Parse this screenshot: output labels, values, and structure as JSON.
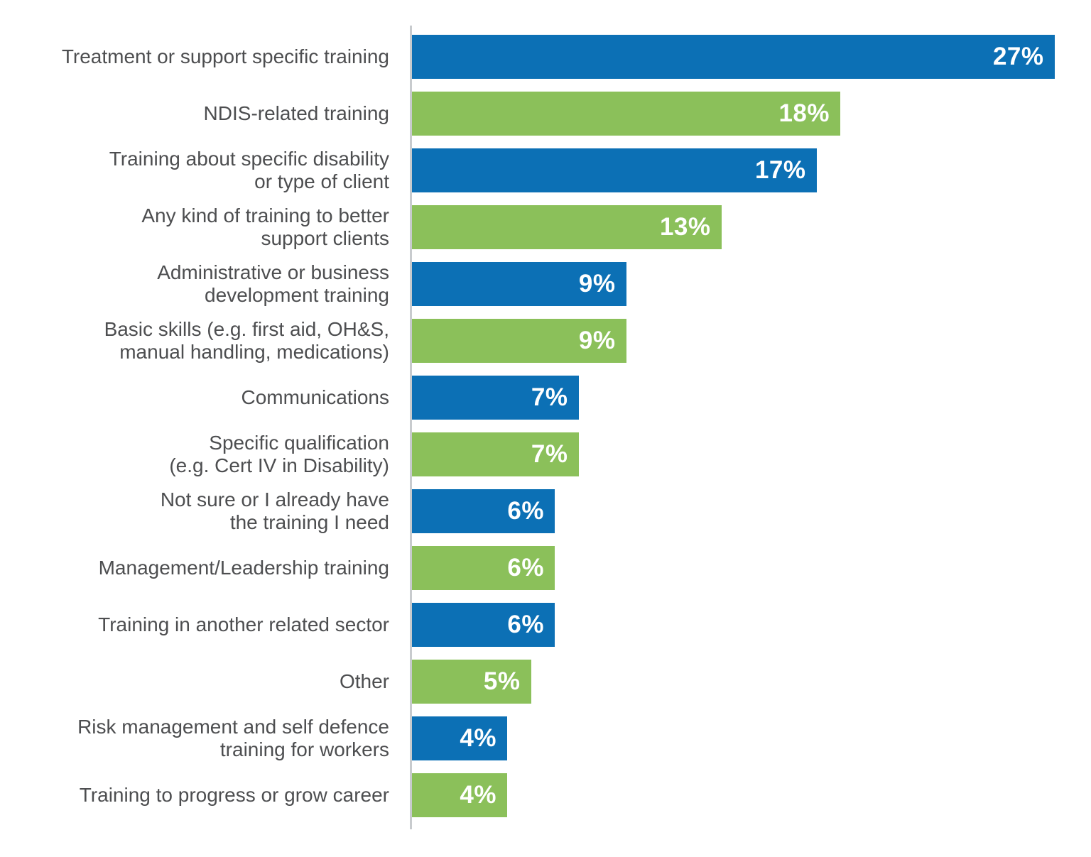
{
  "chart_data": {
    "type": "bar",
    "orientation": "horizontal",
    "title": "",
    "xlabel": "",
    "ylabel": "",
    "unit": "%",
    "xlim": [
      0,
      27
    ],
    "grid": false,
    "legend": false,
    "colors": {
      "blue": "#0c70b5",
      "green": "#8bc05a",
      "axis_line": "#c8cbce",
      "category_text": "#4d4e50",
      "value_text": "#ffffff"
    },
    "categories": [
      "Treatment or support specific training",
      "NDIS-related training",
      "Training about specific disability or type of client",
      "Any kind of training to better support clients",
      "Administrative or business development training",
      "Basic skills (e.g. first aid, OH&S, manual handling, medications)",
      "Communications",
      "Specific qualification (e.g. Cert IV in Disability)",
      "Not sure or I already have the training I need",
      "Management/Leadership training",
      "Training in another related sector",
      "Other",
      "Risk management and self defence training for workers",
      "Training to progress or grow career"
    ],
    "values": [
      27,
      18,
      17,
      13,
      9,
      9,
      7,
      7,
      6,
      6,
      6,
      5,
      4,
      4
    ],
    "rows": [
      {
        "label_lines": [
          "Treatment or support specific training"
        ],
        "value": 27,
        "display_value": "27%",
        "color": "blue"
      },
      {
        "label_lines": [
          "NDIS-related training"
        ],
        "value": 18,
        "display_value": "18%",
        "color": "green"
      },
      {
        "label_lines": [
          "Training about specific disability",
          "or type of client"
        ],
        "value": 17,
        "display_value": "17%",
        "color": "blue"
      },
      {
        "label_lines": [
          "Any kind of training to better",
          "support clients"
        ],
        "value": 13,
        "display_value": "13%",
        "color": "green"
      },
      {
        "label_lines": [
          "Administrative or business",
          "development training"
        ],
        "value": 9,
        "display_value": "9%",
        "color": "blue"
      },
      {
        "label_lines": [
          "Basic skills (e.g. first aid, OH&S,",
          "manual handling, medications)"
        ],
        "value": 9,
        "display_value": "9%",
        "color": "green"
      },
      {
        "label_lines": [
          "Communications"
        ],
        "value": 7,
        "display_value": "7%",
        "color": "blue"
      },
      {
        "label_lines": [
          "Specific qualification",
          "(e.g. Cert IV in Disability)"
        ],
        "value": 7,
        "display_value": "7%",
        "color": "green"
      },
      {
        "label_lines": [
          "Not sure or I already have",
          "the training I need"
        ],
        "value": 6,
        "display_value": "6%",
        "color": "blue"
      },
      {
        "label_lines": [
          "Management/Leadership training"
        ],
        "value": 6,
        "display_value": "6%",
        "color": "green"
      },
      {
        "label_lines": [
          "Training in another related sector"
        ],
        "value": 6,
        "display_value": "6%",
        "color": "blue"
      },
      {
        "label_lines": [
          "Other"
        ],
        "value": 5,
        "display_value": "5%",
        "color": "green"
      },
      {
        "label_lines": [
          "Risk management and self defence",
          "training for workers"
        ],
        "value": 4,
        "display_value": "4%",
        "color": "blue"
      },
      {
        "label_lines": [
          "Training to progress or grow career"
        ],
        "value": 4,
        "display_value": "4%",
        "color": "green"
      }
    ]
  }
}
